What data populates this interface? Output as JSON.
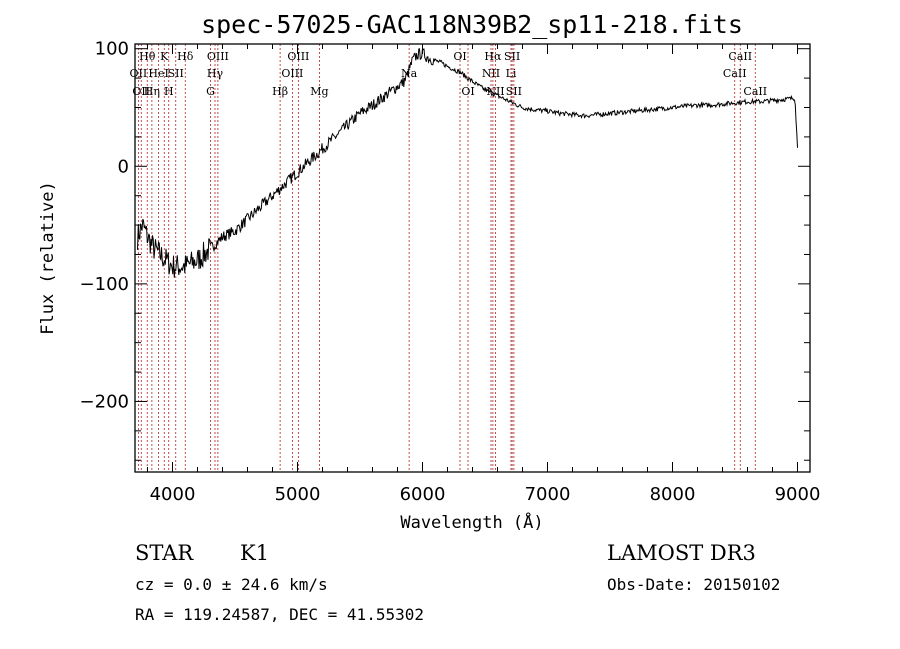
{
  "chart_data": {
    "type": "line",
    "title": "spec-57025-GAC118N39B2_sp11-218.fits",
    "xlabel": "Wavelength (Å)",
    "ylabel": "Flux (relative)",
    "xlim": [
      3700,
      9100
    ],
    "ylim": [
      -260,
      104
    ],
    "x_ticks": [
      4000,
      5000,
      6000,
      7000,
      8000,
      9000
    ],
    "y_ticks": [
      100,
      0,
      -100,
      -200
    ],
    "x_tick_labels": [
      "4000",
      "5000",
      "6000",
      "7000",
      "8000",
      "9000"
    ],
    "y_tick_labels": [
      "100",
      "0",
      "−100",
      "−200"
    ],
    "spectrum": {
      "x": [
        3720,
        3760,
        3800,
        3850,
        3900,
        3950,
        4000,
        4100,
        4200,
        4300,
        4400,
        4500,
        4600,
        4700,
        4800,
        4900,
        5000,
        5100,
        5200,
        5300,
        5400,
        5500,
        5600,
        5700,
        5800,
        5850,
        5880,
        5920,
        5960,
        6000,
        6050,
        6100,
        6150,
        6200,
        6300,
        6400,
        6500,
        6600,
        6700,
        6800,
        6900,
        7000,
        7100,
        7200,
        7300,
        7400,
        7500,
        7600,
        7700,
        7800,
        7900,
        8000,
        8100,
        8200,
        8300,
        8400,
        8500,
        8600,
        8700,
        8800,
        8900,
        8980,
        9000
      ],
      "y": [
        -60,
        -50,
        -60,
        -70,
        -75,
        -80,
        -85,
        -85,
        -80,
        -70,
        -60,
        -55,
        -45,
        -35,
        -25,
        -15,
        -5,
        5,
        15,
        25,
        35,
        45,
        52,
        60,
        68,
        72,
        78,
        90,
        95,
        96,
        92,
        90,
        88,
        85,
        80,
        72,
        65,
        60,
        55,
        50,
        48,
        47,
        45,
        44,
        43,
        44,
        45,
        46,
        47,
        48,
        49,
        50,
        51,
        52,
        52,
        53,
        54,
        55,
        55,
        56,
        57,
        58,
        15
      ]
    },
    "lines": [
      {
        "w": 3727,
        "label": "OII",
        "row": 1
      },
      {
        "w": 3750,
        "label": "OII",
        "row": 2
      },
      {
        "w": 3798,
        "label": "Hθ",
        "row": 0
      },
      {
        "w": 3835,
        "label": "Hη",
        "row": 2
      },
      {
        "w": 3889,
        "label": "HeI",
        "row": 1
      },
      {
        "w": 3934,
        "label": "K",
        "row": 0
      },
      {
        "w": 3970,
        "label": "H",
        "row": 2
      },
      {
        "w": 4026,
        "label": "SII",
        "row": 1
      },
      {
        "w": 4102,
        "label": "Hδ",
        "row": 0
      },
      {
        "w": 4304,
        "label": "G",
        "row": 2
      },
      {
        "w": 4340,
        "label": "Hγ",
        "row": 1
      },
      {
        "w": 4363,
        "label": "OIII",
        "row": 0
      },
      {
        "w": 4861,
        "label": "Hβ",
        "row": 2
      },
      {
        "w": 4959,
        "label": "OIII",
        "row": 1
      },
      {
        "w": 5007,
        "label": "OIII",
        "row": 0
      },
      {
        "w": 5175,
        "label": "Mg",
        "row": 2
      },
      {
        "w": 5893,
        "label": "Na",
        "row": 1
      },
      {
        "w": 6300,
        "label": "OI",
        "row": 0
      },
      {
        "w": 6364,
        "label": "OI",
        "row": 2
      },
      {
        "w": 6548,
        "label": "NII",
        "row": 1
      },
      {
        "w": 6563,
        "label": "Hα",
        "row": 0
      },
      {
        "w": 6584,
        "label": "NII",
        "row": 2
      },
      {
        "w": 6708,
        "label": "Li",
        "row": 1
      },
      {
        "w": 6717,
        "label": "SII",
        "row": 0
      },
      {
        "w": 6731,
        "label": "SII",
        "row": 2
      },
      {
        "w": 8498,
        "label": "CaII",
        "row": 1
      },
      {
        "w": 8542,
        "label": "CaII",
        "row": 0
      },
      {
        "w": 8662,
        "label": "CaII",
        "row": 2
      }
    ]
  },
  "info": {
    "object_class": "STAR",
    "subclass": "K1",
    "survey": "LAMOST DR3",
    "cz": "cz = 0.0 ± 24.6 km/s",
    "obs_date": "Obs-Date: 20150102",
    "coords": "RA = 119.24587, DEC =  41.55302"
  }
}
